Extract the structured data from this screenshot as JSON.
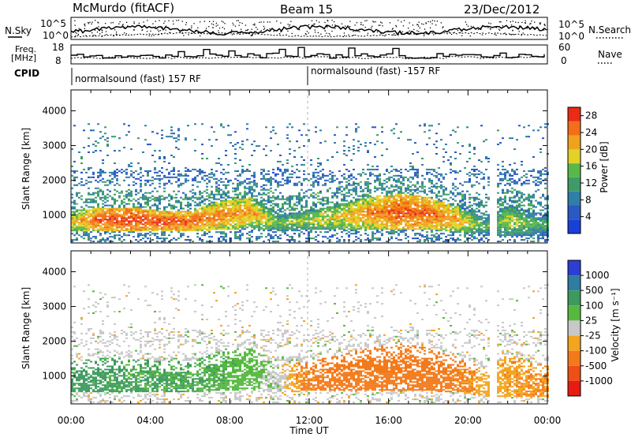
{
  "header": {
    "station": "McMurdo (fitACF)",
    "beam": "Beam 15",
    "date": "23/Dec/2012"
  },
  "top_panels": {
    "nsky_label": "N.Sky",
    "nsearch_label": "N.Search",
    "noise_ticks": [
      "10^5",
      "10^0"
    ],
    "freq_label": "Freq.",
    "freq_unit": "[MHz]",
    "freq_ticks": [
      "18",
      "8"
    ],
    "nave_label": "Nave",
    "nave_ticks": [
      "60",
      "0"
    ],
    "cpid_label": "CPID",
    "cpid_segments": [
      "normalsound (fast) 157 RF",
      "normalsound (fast) -157 RF"
    ]
  },
  "colors": {
    "power_scale": [
      "#1a3fd9",
      "#2a59c4",
      "#2f7fa6",
      "#3f9a6a",
      "#58b84a",
      "#e2d228",
      "#f0a21e",
      "#f26e1a",
      "#ea2b15"
    ],
    "velocity_scale": [
      "#2d3fd2",
      "#2f7da0",
      "#3c9a5f",
      "#57b840",
      "#c8c8c8",
      "#f2a51f",
      "#f37a1a",
      "#ee4f17",
      "#e61c12"
    ]
  },
  "chart_data": [
    {
      "type": "heatmap",
      "title": "",
      "xlabel": "Time UT",
      "ylabel": "Slant Range [km]",
      "x_ticks": [
        "00:00",
        "04:00",
        "08:00",
        "12:00",
        "16:00",
        "20:00",
        "00:00"
      ],
      "y_ticks": [
        "1000",
        "2000",
        "3000",
        "4000"
      ],
      "ylim": [
        200,
        4600
      ],
      "colorbar_label": "Power [dB]",
      "colorbar_ticks": [
        "4",
        "8",
        "12",
        "16",
        "20",
        "24",
        "28"
      ],
      "colorbar_range": [
        0,
        30
      ],
      "x_hours": [
        0,
        1.5,
        3,
        4.5,
        6,
        7.5,
        9,
        10.5,
        12,
        13.5,
        15,
        16.5,
        18,
        19.5,
        20.8,
        22,
        23.5
      ],
      "strong_echo_band_km": [
        [
          500,
          1100
        ],
        [
          500,
          1200
        ],
        [
          500,
          1200
        ],
        [
          500,
          1100
        ],
        [
          500,
          1100
        ],
        [
          550,
          1400
        ],
        [
          600,
          1500
        ],
        [
          500,
          1000
        ],
        [
          550,
          1100
        ],
        [
          550,
          1300
        ],
        [
          550,
          1500
        ],
        [
          550,
          1600
        ],
        [
          550,
          1500
        ],
        [
          500,
          1200
        ],
        [
          400,
          900
        ],
        [
          400,
          1300
        ],
        [
          400,
          1000
        ]
      ],
      "peak_power_db": [
        20,
        27,
        28,
        27,
        26,
        24,
        22,
        16,
        18,
        20,
        24,
        27,
        26,
        22,
        14,
        18,
        14
      ]
    },
    {
      "type": "heatmap",
      "title": "",
      "xlabel": "Time UT",
      "ylabel": "Slant Range [km]",
      "x_ticks": [
        "00:00",
        "04:00",
        "08:00",
        "12:00",
        "16:00",
        "20:00",
        "00:00"
      ],
      "y_ticks": [
        "1000",
        "2000",
        "3000",
        "4000"
      ],
      "ylim": [
        200,
        4600
      ],
      "colorbar_label": "Velocity [m s⁻¹]",
      "colorbar_ticks": [
        "1000",
        "500",
        "100",
        "25",
        "-25",
        "-100",
        "-500",
        "-1000"
      ],
      "colorbar_range": [
        -1200,
        1200
      ],
      "x_hours": [
        0,
        1.5,
        3,
        4.5,
        6,
        7.5,
        9,
        10.5,
        12,
        13.5,
        15,
        16.5,
        18,
        19.5,
        20.8,
        22,
        23.5
      ],
      "dominant_velocity_ms": [
        150,
        150,
        120,
        120,
        100,
        80,
        60,
        0,
        -150,
        -200,
        -250,
        -250,
        -200,
        -150,
        -50,
        -80,
        -100
      ]
    }
  ]
}
